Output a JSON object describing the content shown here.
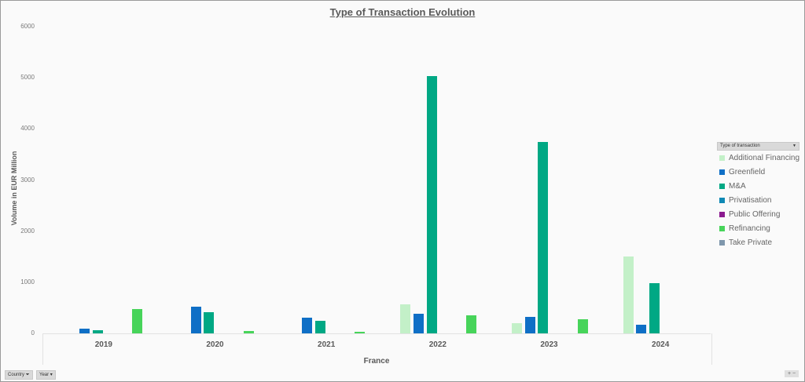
{
  "chart_data": {
    "type": "bar",
    "title": "Type of Transaction Evolution",
    "xlabel": "France",
    "ylabel": "Volume in EUR Million",
    "ylim": [
      0,
      6000
    ],
    "yticks": [
      0,
      1000,
      2000,
      3000,
      4000,
      5000,
      6000
    ],
    "categories": [
      "2019",
      "2020",
      "2021",
      "2022",
      "2023",
      "2024"
    ],
    "legend_title": "Type of transaction",
    "legend_position": "right",
    "grid": false,
    "series": [
      {
        "name": "Additional Financing",
        "color": "#c3f0c8",
        "values": [
          0,
          0,
          0,
          570,
          200,
          1510
        ]
      },
      {
        "name": "Greenfield",
        "color": "#0f6fc6",
        "values": [
          90,
          520,
          310,
          390,
          330,
          170
        ]
      },
      {
        "name": "M&A",
        "color": "#00a884",
        "values": [
          60,
          410,
          250,
          5040,
          3750,
          990
        ]
      },
      {
        "name": "Privatisation",
        "color": "#0f89b5",
        "values": [
          0,
          0,
          0,
          0,
          0,
          0
        ]
      },
      {
        "name": "Public Offering",
        "color": "#8b1a8f",
        "values": [
          0,
          0,
          0,
          0,
          0,
          0
        ]
      },
      {
        "name": "Refinancing",
        "color": "#47d45a",
        "values": [
          470,
          50,
          30,
          350,
          270,
          0
        ]
      },
      {
        "name": "Take Private",
        "color": "#7f97ac",
        "values": [
          0,
          0,
          0,
          0,
          0,
          0
        ]
      }
    ]
  },
  "filters": {
    "country_label": "Country",
    "year_label": "Year"
  },
  "zoom_controls": "+ −"
}
